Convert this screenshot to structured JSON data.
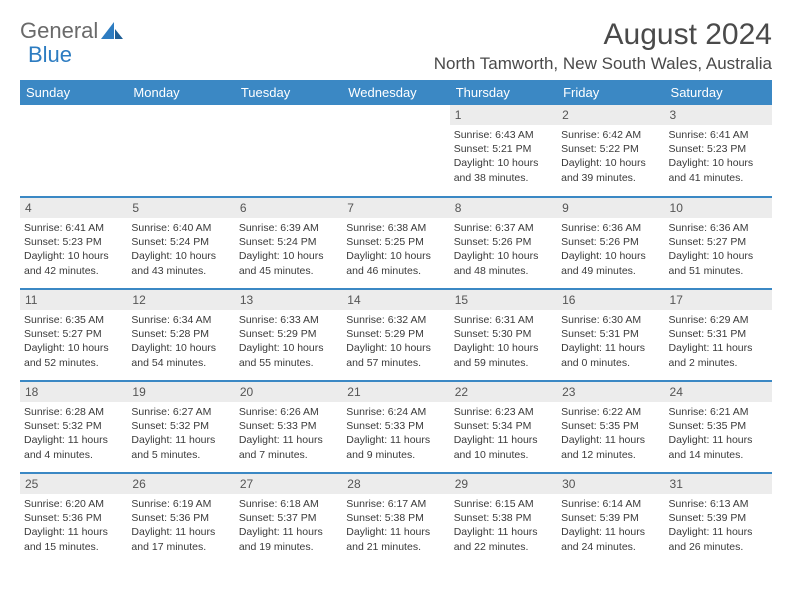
{
  "brand": {
    "part1": "General",
    "part2": "Blue"
  },
  "title": "August 2024",
  "location": "North Tamworth, New South Wales, Australia",
  "headerRow": {
    "bg": "#3b88c4",
    "fg": "#ffffff"
  },
  "dayNames": [
    "Sunday",
    "Monday",
    "Tuesday",
    "Wednesday",
    "Thursday",
    "Friday",
    "Saturday"
  ],
  "colors": {
    "accent": "#3b88c4",
    "dayCellBg": "#ececec",
    "text": "#3a3a3a",
    "titleText": "#4a4a4a"
  },
  "layout": {
    "cols": 7,
    "rows": 5,
    "cellHeightPx": 92,
    "detailFontPt": 8
  },
  "weeks": [
    [
      {
        "empty": true
      },
      {
        "empty": true
      },
      {
        "empty": true
      },
      {
        "empty": true
      },
      {
        "num": "1",
        "sunrise": "6:43 AM",
        "sunset": "5:21 PM",
        "daylight": "10 hours and 38 minutes."
      },
      {
        "num": "2",
        "sunrise": "6:42 AM",
        "sunset": "5:22 PM",
        "daylight": "10 hours and 39 minutes."
      },
      {
        "num": "3",
        "sunrise": "6:41 AM",
        "sunset": "5:23 PM",
        "daylight": "10 hours and 41 minutes."
      }
    ],
    [
      {
        "num": "4",
        "sunrise": "6:41 AM",
        "sunset": "5:23 PM",
        "daylight": "10 hours and 42 minutes."
      },
      {
        "num": "5",
        "sunrise": "6:40 AM",
        "sunset": "5:24 PM",
        "daylight": "10 hours and 43 minutes."
      },
      {
        "num": "6",
        "sunrise": "6:39 AM",
        "sunset": "5:24 PM",
        "daylight": "10 hours and 45 minutes."
      },
      {
        "num": "7",
        "sunrise": "6:38 AM",
        "sunset": "5:25 PM",
        "daylight": "10 hours and 46 minutes."
      },
      {
        "num": "8",
        "sunrise": "6:37 AM",
        "sunset": "5:26 PM",
        "daylight": "10 hours and 48 minutes."
      },
      {
        "num": "9",
        "sunrise": "6:36 AM",
        "sunset": "5:26 PM",
        "daylight": "10 hours and 49 minutes."
      },
      {
        "num": "10",
        "sunrise": "6:36 AM",
        "sunset": "5:27 PM",
        "daylight": "10 hours and 51 minutes."
      }
    ],
    [
      {
        "num": "11",
        "sunrise": "6:35 AM",
        "sunset": "5:27 PM",
        "daylight": "10 hours and 52 minutes."
      },
      {
        "num": "12",
        "sunrise": "6:34 AM",
        "sunset": "5:28 PM",
        "daylight": "10 hours and 54 minutes."
      },
      {
        "num": "13",
        "sunrise": "6:33 AM",
        "sunset": "5:29 PM",
        "daylight": "10 hours and 55 minutes."
      },
      {
        "num": "14",
        "sunrise": "6:32 AM",
        "sunset": "5:29 PM",
        "daylight": "10 hours and 57 minutes."
      },
      {
        "num": "15",
        "sunrise": "6:31 AM",
        "sunset": "5:30 PM",
        "daylight": "10 hours and 59 minutes."
      },
      {
        "num": "16",
        "sunrise": "6:30 AM",
        "sunset": "5:31 PM",
        "daylight": "11 hours and 0 minutes."
      },
      {
        "num": "17",
        "sunrise": "6:29 AM",
        "sunset": "5:31 PM",
        "daylight": "11 hours and 2 minutes."
      }
    ],
    [
      {
        "num": "18",
        "sunrise": "6:28 AM",
        "sunset": "5:32 PM",
        "daylight": "11 hours and 4 minutes."
      },
      {
        "num": "19",
        "sunrise": "6:27 AM",
        "sunset": "5:32 PM",
        "daylight": "11 hours and 5 minutes."
      },
      {
        "num": "20",
        "sunrise": "6:26 AM",
        "sunset": "5:33 PM",
        "daylight": "11 hours and 7 minutes."
      },
      {
        "num": "21",
        "sunrise": "6:24 AM",
        "sunset": "5:33 PM",
        "daylight": "11 hours and 9 minutes."
      },
      {
        "num": "22",
        "sunrise": "6:23 AM",
        "sunset": "5:34 PM",
        "daylight": "11 hours and 10 minutes."
      },
      {
        "num": "23",
        "sunrise": "6:22 AM",
        "sunset": "5:35 PM",
        "daylight": "11 hours and 12 minutes."
      },
      {
        "num": "24",
        "sunrise": "6:21 AM",
        "sunset": "5:35 PM",
        "daylight": "11 hours and 14 minutes."
      }
    ],
    [
      {
        "num": "25",
        "sunrise": "6:20 AM",
        "sunset": "5:36 PM",
        "daylight": "11 hours and 15 minutes."
      },
      {
        "num": "26",
        "sunrise": "6:19 AM",
        "sunset": "5:36 PM",
        "daylight": "11 hours and 17 minutes."
      },
      {
        "num": "27",
        "sunrise": "6:18 AM",
        "sunset": "5:37 PM",
        "daylight": "11 hours and 19 minutes."
      },
      {
        "num": "28",
        "sunrise": "6:17 AM",
        "sunset": "5:38 PM",
        "daylight": "11 hours and 21 minutes."
      },
      {
        "num": "29",
        "sunrise": "6:15 AM",
        "sunset": "5:38 PM",
        "daylight": "11 hours and 22 minutes."
      },
      {
        "num": "30",
        "sunrise": "6:14 AM",
        "sunset": "5:39 PM",
        "daylight": "11 hours and 24 minutes."
      },
      {
        "num": "31",
        "sunrise": "6:13 AM",
        "sunset": "5:39 PM",
        "daylight": "11 hours and 26 minutes."
      }
    ]
  ],
  "labels": {
    "sunrise": "Sunrise: ",
    "sunset": "Sunset: ",
    "daylight": "Daylight: "
  }
}
